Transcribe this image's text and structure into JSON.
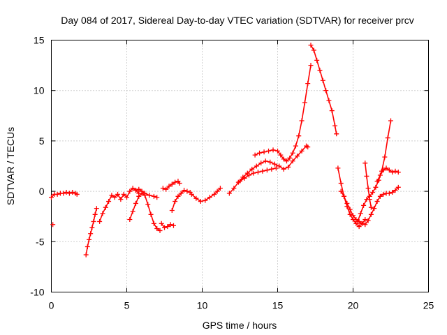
{
  "chart_data": {
    "type": "scatter",
    "title": "Day 084 of 2017, Sidereal Day-to-day VTEC variation (SDTVAR) for receiver prcv",
    "xlabel": "GPS time / hours",
    "ylabel": "SDTVAR / TECUs",
    "xlim": [
      0,
      25
    ],
    "ylim": [
      -10,
      15
    ],
    "xticks": [
      "0",
      "5",
      "10",
      "15",
      "20",
      "25"
    ],
    "yticks": [
      "15",
      "10",
      "5",
      "0",
      "-5",
      "-10"
    ],
    "xtick_values": [
      0,
      5,
      10,
      15,
      20,
      25
    ],
    "ytick_values": [
      15,
      10,
      5,
      0,
      -5,
      -10
    ],
    "grid": true,
    "marker": "plus",
    "color": "#ff0000",
    "series": [
      {
        "x": [
          0.0,
          0.2,
          0.4,
          0.6,
          0.8,
          1.0,
          1.2,
          1.4,
          1.6,
          1.7
        ],
        "values": [
          -0.6,
          -0.3,
          -0.3,
          -0.2,
          -0.2,
          -0.1,
          -0.2,
          -0.1,
          -0.2,
          -0.3
        ]
      },
      {
        "x": [
          0.1
        ],
        "values": [
          -3.3
        ]
      },
      {
        "x": [
          2.3,
          2.4,
          2.5,
          2.6,
          2.7,
          2.8,
          2.9,
          3.0
        ],
        "values": [
          -6.3,
          -5.5,
          -4.8,
          -4.2,
          -3.6,
          -3.0,
          -2.3,
          -1.7
        ]
      },
      {
        "x": [
          3.2,
          3.4,
          3.6,
          3.8,
          4.0,
          4.2,
          4.4,
          4.6,
          4.8,
          5.0,
          5.2,
          5.4,
          5.6,
          5.8
        ],
        "values": [
          -3.0,
          -2.2,
          -1.6,
          -1.0,
          -0.4,
          -0.6,
          -0.3,
          -0.8,
          -0.3,
          -0.6,
          0.0,
          0.3,
          0.1,
          -0.2
        ]
      },
      {
        "x": [
          5.2,
          5.4,
          5.6,
          5.8,
          6.0,
          6.2,
          6.4,
          6.6,
          6.8,
          7.0,
          7.2
        ],
        "values": [
          -2.8,
          -2.0,
          -1.2,
          -0.5,
          -0.2,
          -0.4,
          -1.3,
          -2.3,
          -3.2,
          -3.7,
          -3.9
        ]
      },
      {
        "x": [
          5.6,
          5.8,
          6.0,
          6.2,
          6.5,
          6.8,
          7.0
        ],
        "values": [
          0.1,
          0.2,
          0.0,
          -0.2,
          -0.4,
          -0.5,
          -0.6
        ]
      },
      {
        "x": [
          7.3,
          7.5,
          7.7,
          7.9,
          8.1
        ],
        "values": [
          -3.2,
          -3.6,
          -3.5,
          -3.3,
          -3.4
        ]
      },
      {
        "x": [
          7.4,
          7.6,
          7.8,
          8.0,
          8.2,
          8.4,
          8.5
        ],
        "values": [
          0.3,
          0.2,
          0.5,
          0.7,
          0.9,
          1.0,
          0.8
        ]
      },
      {
        "x": [
          8.0,
          8.2,
          8.4,
          8.6,
          8.8,
          9.0,
          9.2
        ],
        "values": [
          -1.9,
          -1.0,
          -0.5,
          -0.2,
          0.1,
          0.0,
          -0.1
        ]
      },
      {
        "x": [
          9.3,
          9.6,
          9.9,
          10.2,
          10.5,
          10.8,
          11.0,
          11.2
        ],
        "values": [
          -0.3,
          -0.7,
          -1.0,
          -0.9,
          -0.6,
          -0.3,
          0.0,
          0.3
        ]
      },
      {
        "x": [
          11.8,
          12.1,
          12.4,
          12.7,
          13.0,
          13.3,
          13.6,
          13.9,
          14.2,
          14.5,
          14.8,
          15.1,
          15.4,
          15.7,
          16.0,
          16.3,
          16.6,
          16.9,
          17.0
        ],
        "values": [
          -0.2,
          0.3,
          0.9,
          1.4,
          1.8,
          2.2,
          2.5,
          2.8,
          3.0,
          2.9,
          2.7,
          2.5,
          2.2,
          2.4,
          3.0,
          3.5,
          4.0,
          4.5,
          4.4
        ]
      },
      {
        "x": [
          12.5,
          12.8,
          13.1,
          13.4,
          13.7,
          14.0,
          14.3,
          14.6,
          14.9
        ],
        "values": [
          1.0,
          1.3,
          1.6,
          1.8,
          1.9,
          2.0,
          2.1,
          2.2,
          2.3
        ]
      },
      {
        "x": [
          13.5,
          13.8,
          14.1,
          14.4,
          14.7,
          15.0,
          15.2,
          15.4,
          15.6,
          15.8,
          16.0,
          16.2,
          16.4,
          16.6,
          16.8,
          17.0,
          17.2
        ],
        "values": [
          3.6,
          3.8,
          3.9,
          4.0,
          4.1,
          4.0,
          3.6,
          3.2,
          3.0,
          3.3,
          3.8,
          4.5,
          5.5,
          7.0,
          8.8,
          10.7,
          12.5
        ]
      },
      {
        "x": [
          17.2,
          17.4,
          17.6,
          17.8,
          18.0,
          18.2,
          18.4,
          18.6,
          18.8,
          18.9
        ],
        "values": [
          14.5,
          14.0,
          13.0,
          12.0,
          11.0,
          10.0,
          9.0,
          8.0,
          6.5,
          5.7
        ]
      },
      {
        "x": [
          19.0,
          19.2,
          19.4,
          19.6,
          19.8,
          20.0,
          20.2,
          20.4,
          20.6,
          20.8
        ],
        "values": [
          2.3,
          0.8,
          -0.5,
          -1.5,
          -2.3,
          -2.8,
          -3.2,
          -3.5,
          -3.2,
          -2.8
        ]
      },
      {
        "x": [
          19.2,
          19.4,
          19.6,
          19.8,
          20.0,
          20.2,
          20.4,
          20.6,
          20.8,
          21.0,
          21.2,
          21.4,
          21.6,
          21.8,
          22.0,
          22.2,
          22.4,
          22.6,
          22.8,
          23.0
        ],
        "values": [
          0.0,
          -0.5,
          -1.2,
          -1.8,
          -2.4,
          -2.8,
          -3.0,
          -3.2,
          -3.3,
          -2.9,
          -2.3,
          -1.7,
          -1.0,
          -0.5,
          -0.3,
          -0.2,
          -0.2,
          -0.1,
          0.1,
          0.4
        ]
      },
      {
        "x": [
          20.3,
          20.5,
          20.7,
          20.9,
          21.1,
          21.3,
          21.5,
          21.7,
          21.9,
          22.1,
          22.3,
          22.5
        ],
        "values": [
          -3.0,
          -2.2,
          -1.4,
          -0.8,
          -0.5,
          -0.1,
          0.4,
          1.1,
          2.0,
          3.4,
          5.3,
          7.0
        ]
      },
      {
        "x": [
          20.8,
          20.9,
          21.0,
          21.1,
          21.2
        ],
        "values": [
          2.8,
          1.5,
          0.3,
          -0.8,
          -1.6
        ]
      },
      {
        "x": [
          21.6,
          21.8,
          22.0,
          22.2,
          22.4,
          22.6,
          22.8,
          23.0
        ],
        "values": [
          1.0,
          1.6,
          2.1,
          2.3,
          2.1,
          1.9,
          2.0,
          1.9
        ]
      }
    ]
  }
}
